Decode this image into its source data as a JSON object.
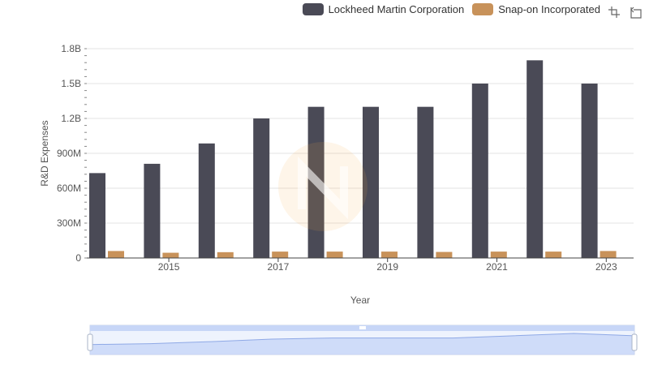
{
  "chart_data": {
    "type": "bar",
    "title": "",
    "xlabel": "Year",
    "ylabel": "R&D Expenses",
    "categories": [
      "2014",
      "2015",
      "2016",
      "2017",
      "2018",
      "2019",
      "2020",
      "2021",
      "2022",
      "2023"
    ],
    "x_tick_labels": [
      "2015",
      "2017",
      "2019",
      "2021",
      "2023"
    ],
    "y_tick_labels": [
      "0",
      "300M",
      "600M",
      "900M",
      "1.2B",
      "1.5B",
      "1.8B"
    ],
    "ylim": [
      0,
      1800000000
    ],
    "grid": true,
    "legend_position": "top-right",
    "series": [
      {
        "name": "Lockheed Martin Corporation",
        "color": "#4a4a56",
        "values": [
          730000000,
          810000000,
          985000000,
          1200000000,
          1300000000,
          1300000000,
          1300000000,
          1500000000,
          1700000000,
          1500000000
        ]
      },
      {
        "name": "Snap-on Incorporated",
        "color": "#c8925a",
        "values": [
          60000000,
          45000000,
          50000000,
          55000000,
          55000000,
          55000000,
          52000000,
          55000000,
          55000000,
          60000000
        ]
      }
    ]
  },
  "toolbox": {
    "zoom_icon": "zoom-icon",
    "restore_icon": "restore-icon"
  },
  "slider": {
    "color": "#c7d6f7"
  }
}
